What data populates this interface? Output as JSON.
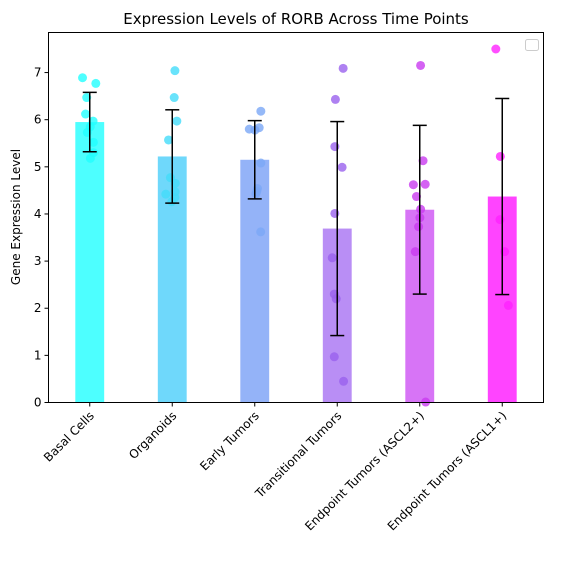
{
  "chart_data": {
    "type": "bar",
    "title": "Expression Levels of RORB Across Time Points",
    "xlabel": "",
    "ylabel": "Gene Expression Level",
    "ylim": [
      0,
      7.85
    ],
    "yticks": [
      0,
      1,
      2,
      3,
      4,
      5,
      6,
      7
    ],
    "grid": false,
    "legend": "top-right",
    "categories": [
      "Basal Cells",
      "Organoids",
      "Early Tumors",
      "Transitional Tumors",
      "Endpoint Tumors (ASCL2+)",
      "Endpoint Tumors (ASCL1+)"
    ],
    "bar_colors": [
      "#4dffff",
      "#6fd8fb",
      "#94b3f8",
      "#b98ef5",
      "#d774f6",
      "#ff44ff"
    ],
    "point_colors": [
      "#22ffff",
      "#44dcfa",
      "#7aa7f6",
      "#9a62ee",
      "#c93bf0",
      "#ff22ff"
    ],
    "values": [
      5.95,
      5.22,
      5.15,
      3.69,
      4.09,
      4.37
    ],
    "error": [
      0.63,
      0.99,
      0.83,
      2.27,
      1.79,
      2.08
    ],
    "points": [
      [
        6.89,
        6.77,
        6.47,
        6.12,
        5.97,
        5.85,
        5.73,
        5.52,
        5.3,
        5.18
      ],
      [
        7.04,
        6.47,
        5.97,
        5.57,
        4.77,
        4.65,
        4.47,
        4.42,
        4.35,
        4.26
      ],
      [
        6.18,
        5.83,
        5.8,
        5.78,
        5.08,
        4.54,
        4.48,
        4.43,
        3.62
      ],
      [
        7.09,
        6.43,
        5.43,
        4.99,
        4.01,
        3.07,
        2.3,
        2.2,
        0.97,
        0.45
      ],
      [
        7.15,
        5.13,
        4.63,
        4.62,
        4.37,
        4.1,
        3.92,
        3.73,
        3.2,
        0.01
      ],
      [
        7.5,
        5.22,
        3.88,
        3.2,
        2.06
      ]
    ]
  }
}
